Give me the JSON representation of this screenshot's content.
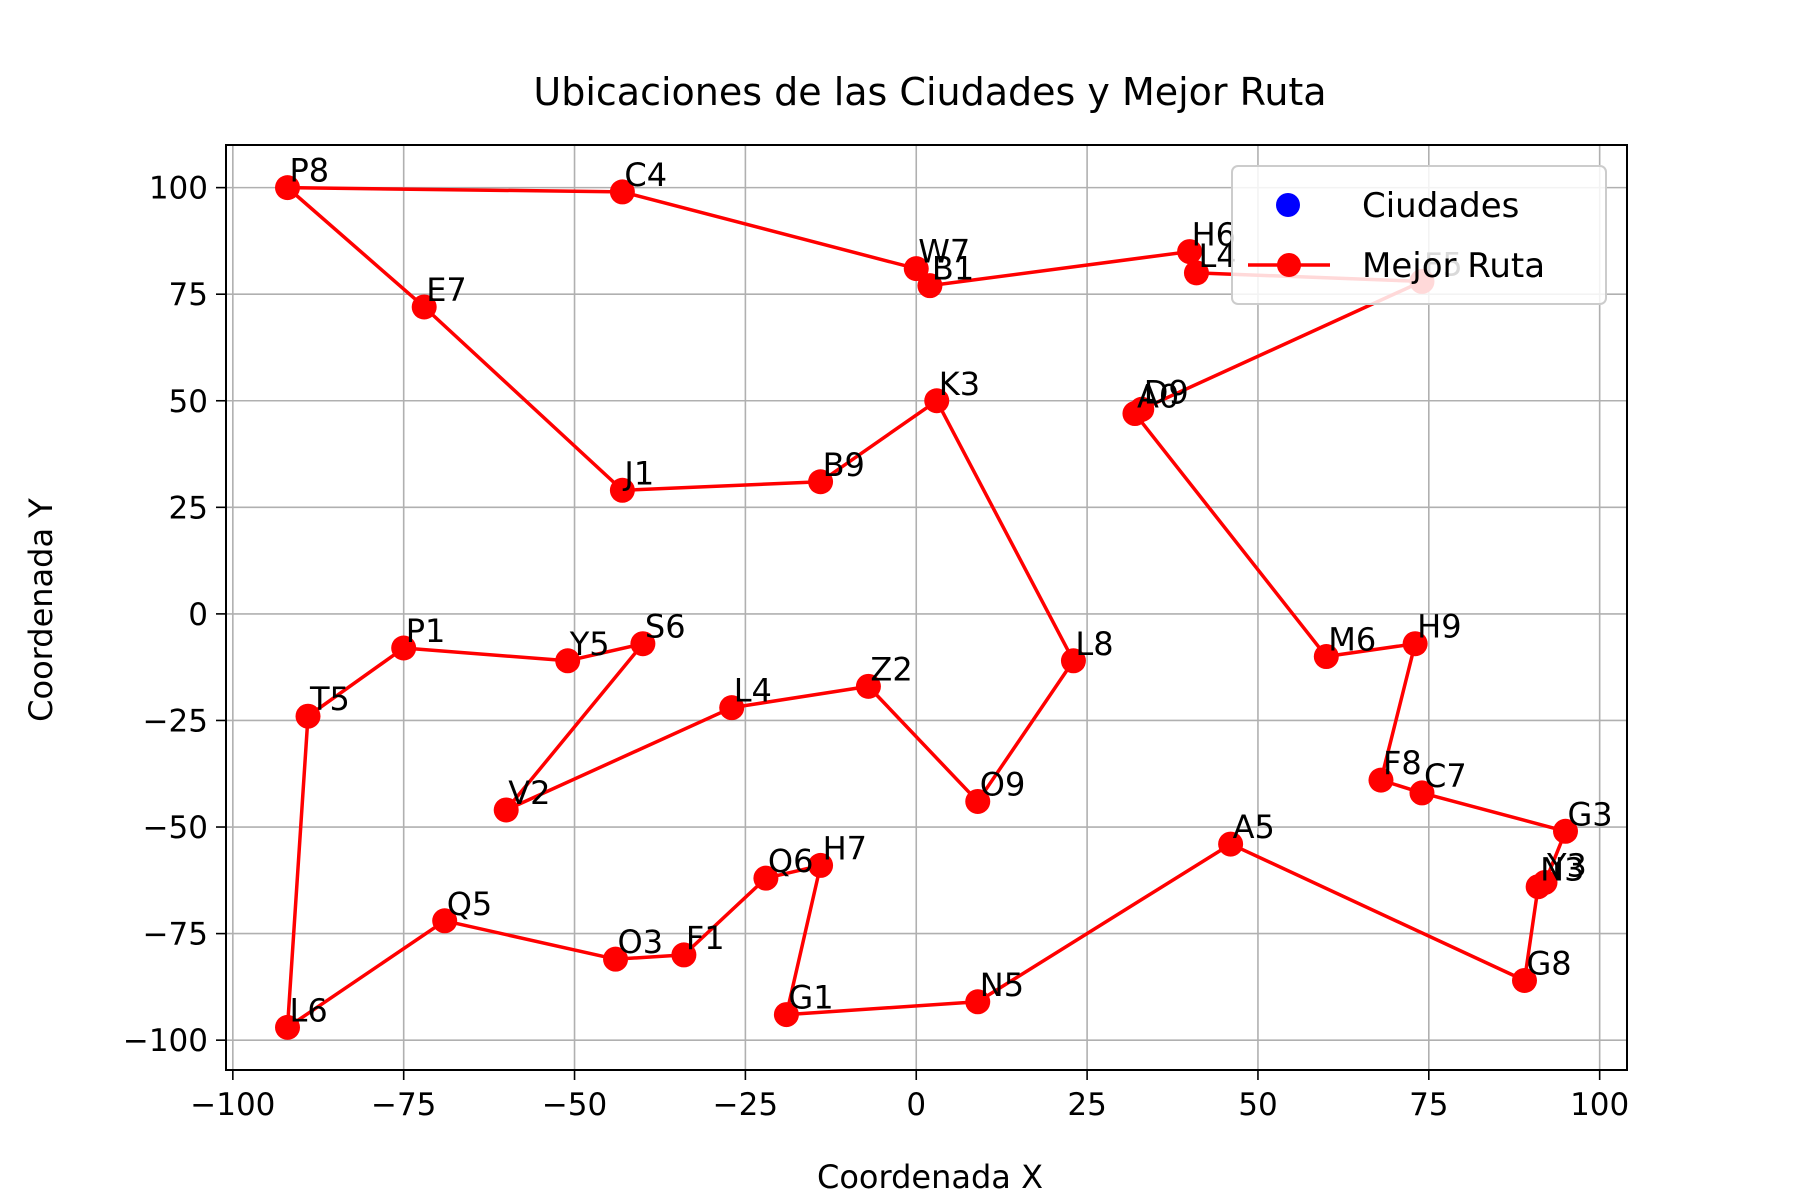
{
  "chart_data": {
    "type": "scatter",
    "title": "Ubicaciones de las Ciudades y Mejor Ruta",
    "xlabel": "Coordenada X",
    "ylabel": "Coordenada Y",
    "xlim": [
      -101,
      104
    ],
    "ylim": [
      -107,
      110
    ],
    "xticks": [
      -100,
      -75,
      -50,
      -25,
      0,
      25,
      50,
      75,
      100
    ],
    "yticks": [
      -100,
      -75,
      -50,
      -25,
      0,
      25,
      50,
      75,
      100
    ],
    "xtick_labels": [
      "−100",
      "−75",
      "−50",
      "−25",
      "0",
      "25",
      "50",
      "75",
      "100"
    ],
    "ytick_labels": [
      "−100",
      "−75",
      "−50",
      "−25",
      "0",
      "25",
      "50",
      "75",
      "100"
    ],
    "grid": true,
    "legend_position": "top-right",
    "colors": {
      "cities": "#0000ff",
      "route": "#ff0000"
    },
    "series": [
      {
        "name": "Ciudades",
        "kind": "points",
        "points": [
          {
            "label": "P8",
            "x": -92,
            "y": 100
          },
          {
            "label": "C4",
            "x": -43,
            "y": 99
          },
          {
            "label": "W7",
            "x": 0,
            "y": 81
          },
          {
            "label": "B1",
            "x": 2,
            "y": 77
          },
          {
            "label": "H6",
            "x": 40,
            "y": 85
          },
          {
            "label": "L4",
            "x": 41,
            "y": 80
          },
          {
            "label": "F5",
            "x": 74,
            "y": 78
          },
          {
            "label": "D9",
            "x": 33,
            "y": 48
          },
          {
            "label": "A0",
            "x": 32,
            "y": 47
          },
          {
            "label": "M6",
            "x": 60,
            "y": -10
          },
          {
            "label": "H9",
            "x": 73,
            "y": -7
          },
          {
            "label": "F8",
            "x": 68,
            "y": -39
          },
          {
            "label": "C7",
            "x": 74,
            "y": -42
          },
          {
            "label": "G3",
            "x": 95,
            "y": -51
          },
          {
            "label": "Y3",
            "x": 92,
            "y": -63
          },
          {
            "label": "N3",
            "x": 91,
            "y": -64
          },
          {
            "label": "G8",
            "x": 89,
            "y": -86
          },
          {
            "label": "A5",
            "x": 46,
            "y": -54
          },
          {
            "label": "N5",
            "x": 9,
            "y": -91
          },
          {
            "label": "G1",
            "x": -19,
            "y": -94
          },
          {
            "label": "H7",
            "x": -14,
            "y": -59
          },
          {
            "label": "Q6",
            "x": -22,
            "y": -62
          },
          {
            "label": "F1",
            "x": -34,
            "y": -80
          },
          {
            "label": "O3",
            "x": -44,
            "y": -81
          },
          {
            "label": "Q5",
            "x": -69,
            "y": -72
          },
          {
            "label": "L6",
            "x": -92,
            "y": -97
          },
          {
            "label": "T5",
            "x": -89,
            "y": -24
          },
          {
            "label": "P1",
            "x": -75,
            "y": -8
          },
          {
            "label": "Y5",
            "x": -51,
            "y": -11
          },
          {
            "label": "S6",
            "x": -40,
            "y": -7
          },
          {
            "label": "V2",
            "x": -60,
            "y": -46
          },
          {
            "label": "L4",
            "x": -27,
            "y": -22
          },
          {
            "label": "Z2",
            "x": -7,
            "y": -17
          },
          {
            "label": "O9",
            "x": 9,
            "y": -44
          },
          {
            "label": "L8",
            "x": 23,
            "y": -11
          },
          {
            "label": "K3",
            "x": 3,
            "y": 50
          },
          {
            "label": "B9",
            "x": -14,
            "y": 31
          },
          {
            "label": "J1",
            "x": -43,
            "y": 29
          },
          {
            "label": "E7",
            "x": -72,
            "y": 72
          }
        ]
      },
      {
        "name": "Mejor Ruta",
        "kind": "route",
        "order": [
          "P8",
          "C4",
          "W7",
          "B1",
          "H6",
          "L4",
          "F5",
          "D9",
          "A0",
          "M6",
          "H9",
          "F8",
          "C7",
          "G3",
          "Y3",
          "N3",
          "G8",
          "A5",
          "N5",
          "G1",
          "H7",
          "Q6",
          "F1",
          "O3",
          "Q5",
          "L6",
          "T5",
          "P1",
          "Y5",
          "S6",
          "V2",
          "L4",
          "Z2",
          "O9",
          "L8",
          "K3",
          "B9",
          "J1",
          "E7",
          "P8"
        ]
      }
    ]
  }
}
